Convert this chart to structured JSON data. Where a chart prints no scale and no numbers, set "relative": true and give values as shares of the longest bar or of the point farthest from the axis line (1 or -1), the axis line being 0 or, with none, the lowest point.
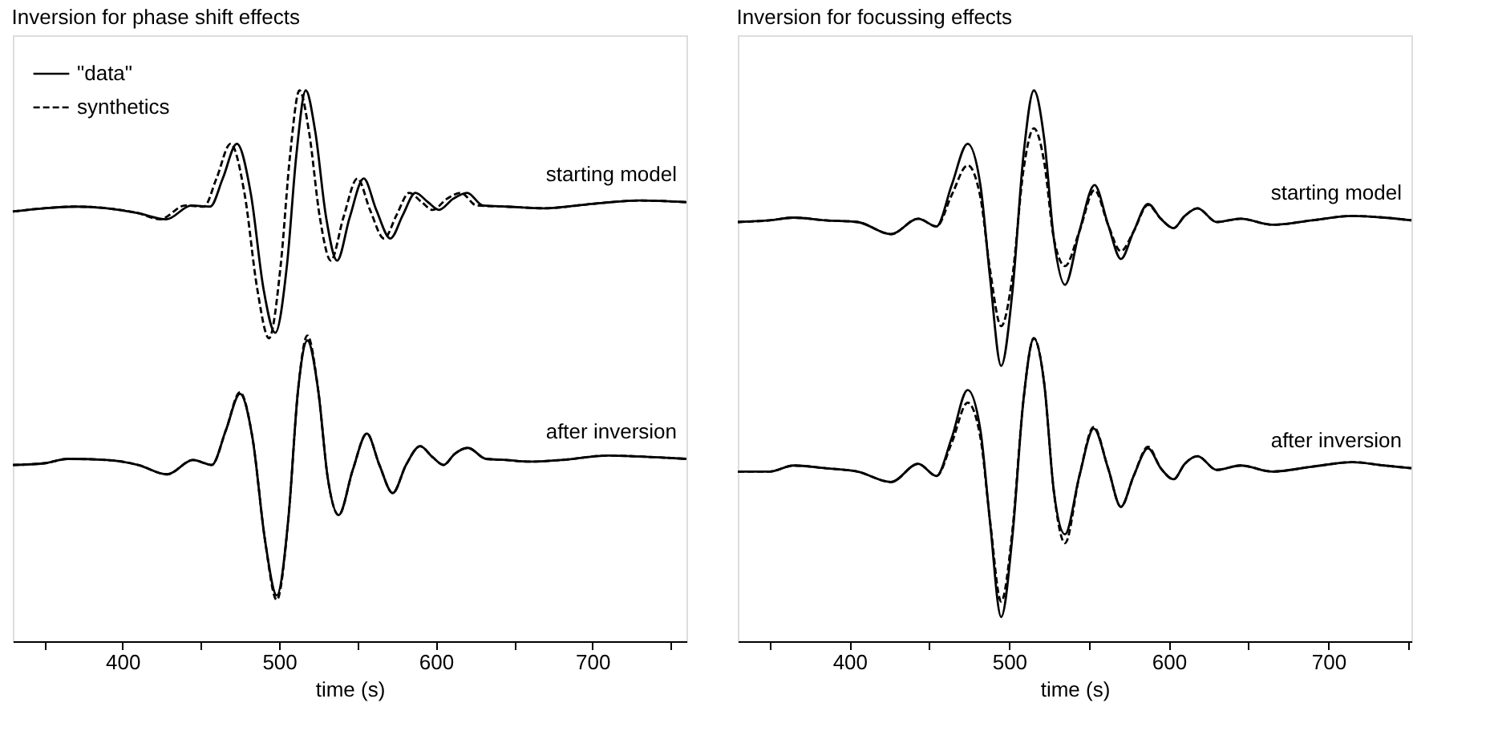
{
  "chart_data": [
    {
      "type": "line",
      "title": "Inversion for phase shift effects",
      "xlabel": "time (s)",
      "xlim": [
        330,
        760
      ],
      "xticks": [
        {
          "value": 350,
          "label": null
        },
        400,
        {
          "value": 450,
          "label": null
        },
        500,
        {
          "value": 550,
          "label": null
        },
        600,
        {
          "value": 650,
          "label": null
        },
        700,
        {
          "value": 750,
          "label": null
        }
      ],
      "relative": true,
      "grid": false,
      "legend": "top left",
      "annotations": [
        "starting model",
        "after inversion"
      ],
      "series": [
        {
          "name": "\"data\"",
          "color": "#000000",
          "line_style": "solid",
          "x": [
            330,
            350,
            370,
            390,
            410,
            428,
            444,
            456,
            464,
            473,
            482,
            490,
            497.5,
            505,
            511,
            517,
            523,
            530,
            537,
            545,
            554,
            562,
            571,
            579,
            587,
            595,
            602,
            611,
            620,
            630,
            645,
            670,
            700,
            730,
            760
          ],
          "values": [
            0.78,
            0.786,
            0.789,
            0.786,
            0.777,
            0.766,
            0.791,
            0.789,
            0.84,
            0.903,
            0.811,
            0.64,
            0.56,
            0.683,
            0.883,
            1.0,
            0.926,
            0.769,
            0.691,
            0.769,
            0.84,
            0.783,
            0.731,
            0.774,
            0.814,
            0.797,
            0.783,
            0.803,
            0.814,
            0.791,
            0.789,
            0.786,
            0.794,
            0.8,
            0.797
          ]
        },
        {
          "name": "synthetics",
          "color": "#000000",
          "line_style": "dashed",
          "x": [
            330,
            350,
            370,
            390,
            410,
            424,
            440,
            452,
            460,
            469,
            478,
            486,
            493.5,
            501,
            507,
            513,
            519,
            526,
            533,
            541,
            550,
            558,
            567,
            575,
            583,
            591,
            598,
            607,
            616,
            626,
            645,
            670,
            700,
            730,
            760
          ],
          "values": [
            0.78,
            0.786,
            0.789,
            0.786,
            0.777,
            0.766,
            0.791,
            0.789,
            0.84,
            0.903,
            0.811,
            0.64,
            0.55,
            0.683,
            0.883,
            1.0,
            0.926,
            0.769,
            0.691,
            0.769,
            0.84,
            0.783,
            0.731,
            0.774,
            0.814,
            0.797,
            0.783,
            0.803,
            0.814,
            0.791,
            0.789,
            0.786,
            0.794,
            0.8,
            0.797
          ]
        },
        {
          "color": "#000000",
          "line_style": "solid",
          "x": [
            330,
            350,
            365,
            390,
            410,
            428.5,
            445,
            457,
            466,
            475,
            483,
            491,
            498.5,
            506,
            512,
            518,
            525,
            531,
            538,
            547,
            556,
            564,
            572.5,
            581,
            590,
            598,
            605,
            612,
            620.5,
            632,
            645,
            660,
            680,
            710,
            740,
            760
          ],
          "values": [
            0.32,
            0.323,
            0.331,
            0.329,
            0.32,
            0.303,
            0.329,
            0.32,
            0.383,
            0.449,
            0.369,
            0.183,
            0.083,
            0.226,
            0.454,
            0.546,
            0.454,
            0.297,
            0.229,
            0.311,
            0.377,
            0.32,
            0.269,
            0.32,
            0.354,
            0.334,
            0.32,
            0.34,
            0.351,
            0.331,
            0.329,
            0.326,
            0.329,
            0.337,
            0.334,
            0.331
          ]
        },
        {
          "color": "#000000",
          "line_style": "dashed",
          "x": [
            330,
            350,
            365,
            390,
            410,
            428.5,
            445,
            457,
            466,
            475,
            483,
            491,
            498.5,
            506,
            512,
            518,
            525,
            531,
            538,
            547,
            556,
            564,
            572.5,
            581,
            590,
            598,
            605,
            612,
            620.5,
            632,
            645,
            660,
            680,
            710,
            740,
            760
          ],
          "values": [
            0.32,
            0.323,
            0.331,
            0.329,
            0.32,
            0.303,
            0.329,
            0.32,
            0.383,
            0.452,
            0.369,
            0.183,
            0.075,
            0.226,
            0.454,
            0.555,
            0.454,
            0.297,
            0.229,
            0.311,
            0.377,
            0.32,
            0.269,
            0.32,
            0.354,
            0.334,
            0.32,
            0.34,
            0.351,
            0.331,
            0.329,
            0.326,
            0.329,
            0.337,
            0.334,
            0.331
          ]
        }
      ]
    },
    {
      "type": "line",
      "title": "Inversion for focussing effects",
      "xlabel": "time (s)",
      "xlim": [
        330,
        752
      ],
      "xticks": [
        {
          "value": 350,
          "label": null
        },
        400,
        {
          "value": 450,
          "label": null
        },
        500,
        {
          "value": 550,
          "label": null
        },
        600,
        {
          "value": 650,
          "label": null
        },
        700,
        {
          "value": 750,
          "label": null
        }
      ],
      "relative": true,
      "grid": false,
      "legend": "top left",
      "annotations": [
        "starting model",
        "after inversion"
      ],
      "series": [
        {
          "name": "\"data\"",
          "color": "#000000",
          "line_style": "solid",
          "x": [
            330,
            350,
            365,
            385,
            405,
            426,
            443,
            454.5,
            464,
            474,
            482,
            488,
            495,
            502,
            509,
            515.5,
            522,
            528,
            535,
            544,
            553.5,
            562,
            570,
            578,
            587,
            595,
            603,
            610,
            618,
            630,
            645,
            665,
            690,
            715,
            735,
            752
          ],
          "values": [
            0.761,
            0.764,
            0.769,
            0.764,
            0.761,
            0.739,
            0.767,
            0.753,
            0.828,
            0.903,
            0.828,
            0.661,
            0.5,
            0.633,
            0.883,
            1.0,
            0.911,
            0.731,
            0.647,
            0.744,
            0.828,
            0.756,
            0.694,
            0.744,
            0.794,
            0.767,
            0.75,
            0.772,
            0.786,
            0.761,
            0.767,
            0.756,
            0.764,
            0.772,
            0.769,
            0.764
          ]
        },
        {
          "name": "synthetics",
          "color": "#000000",
          "line_style": "dashed",
          "x": [
            330,
            350,
            365,
            385,
            405,
            426,
            443,
            454.5,
            464,
            474,
            482,
            488,
            495,
            502,
            509,
            515.5,
            522,
            528,
            535,
            544,
            553.5,
            562,
            570,
            578,
            587,
            595,
            603,
            610,
            618,
            630,
            645,
            665,
            690,
            715,
            735,
            752
          ],
          "values": [
            0.761,
            0.764,
            0.769,
            0.764,
            0.761,
            0.739,
            0.767,
            0.753,
            0.81,
            0.864,
            0.806,
            0.675,
            0.572,
            0.661,
            0.856,
            0.931,
            0.869,
            0.731,
            0.681,
            0.744,
            0.819,
            0.756,
            0.708,
            0.744,
            0.792,
            0.767,
            0.75,
            0.772,
            0.786,
            0.761,
            0.767,
            0.756,
            0.764,
            0.772,
            0.769,
            0.764
          ]
        },
        {
          "color": "#000000",
          "line_style": "solid",
          "x": [
            330,
            350,
            365,
            385,
            405,
            426,
            443,
            454.5,
            464,
            474,
            482,
            488,
            495,
            502,
            509,
            515.5,
            522,
            528,
            535,
            544,
            553,
            562,
            570,
            578,
            587,
            595,
            603,
            610,
            618,
            630,
            645,
            665,
            690,
            715,
            735,
            752
          ],
          "values": [
            0.308,
            0.308,
            0.319,
            0.314,
            0.308,
            0.289,
            0.322,
            0.3,
            0.369,
            0.456,
            0.383,
            0.217,
            0.044,
            0.189,
            0.439,
            0.55,
            0.467,
            0.272,
            0.194,
            0.3,
            0.386,
            0.314,
            0.244,
            0.3,
            0.35,
            0.314,
            0.294,
            0.322,
            0.336,
            0.311,
            0.319,
            0.308,
            0.317,
            0.325,
            0.319,
            0.314
          ]
        },
        {
          "color": "#000000",
          "line_style": "dashed",
          "x": [
            330,
            350,
            365,
            385,
            405,
            426,
            443,
            454.5,
            464,
            474,
            482,
            488,
            495,
            502,
            509,
            515.5,
            522,
            528,
            535,
            544,
            553,
            562,
            570,
            578,
            587,
            595,
            603,
            610,
            618,
            630,
            645,
            665,
            690,
            715,
            735,
            752
          ],
          "values": [
            0.308,
            0.308,
            0.319,
            0.314,
            0.308,
            0.289,
            0.322,
            0.3,
            0.36,
            0.433,
            0.37,
            0.22,
            0.072,
            0.2,
            0.439,
            0.55,
            0.467,
            0.272,
            0.178,
            0.3,
            0.389,
            0.314,
            0.244,
            0.3,
            0.353,
            0.314,
            0.294,
            0.322,
            0.336,
            0.311,
            0.319,
            0.308,
            0.317,
            0.325,
            0.319,
            0.314
          ]
        }
      ]
    }
  ]
}
